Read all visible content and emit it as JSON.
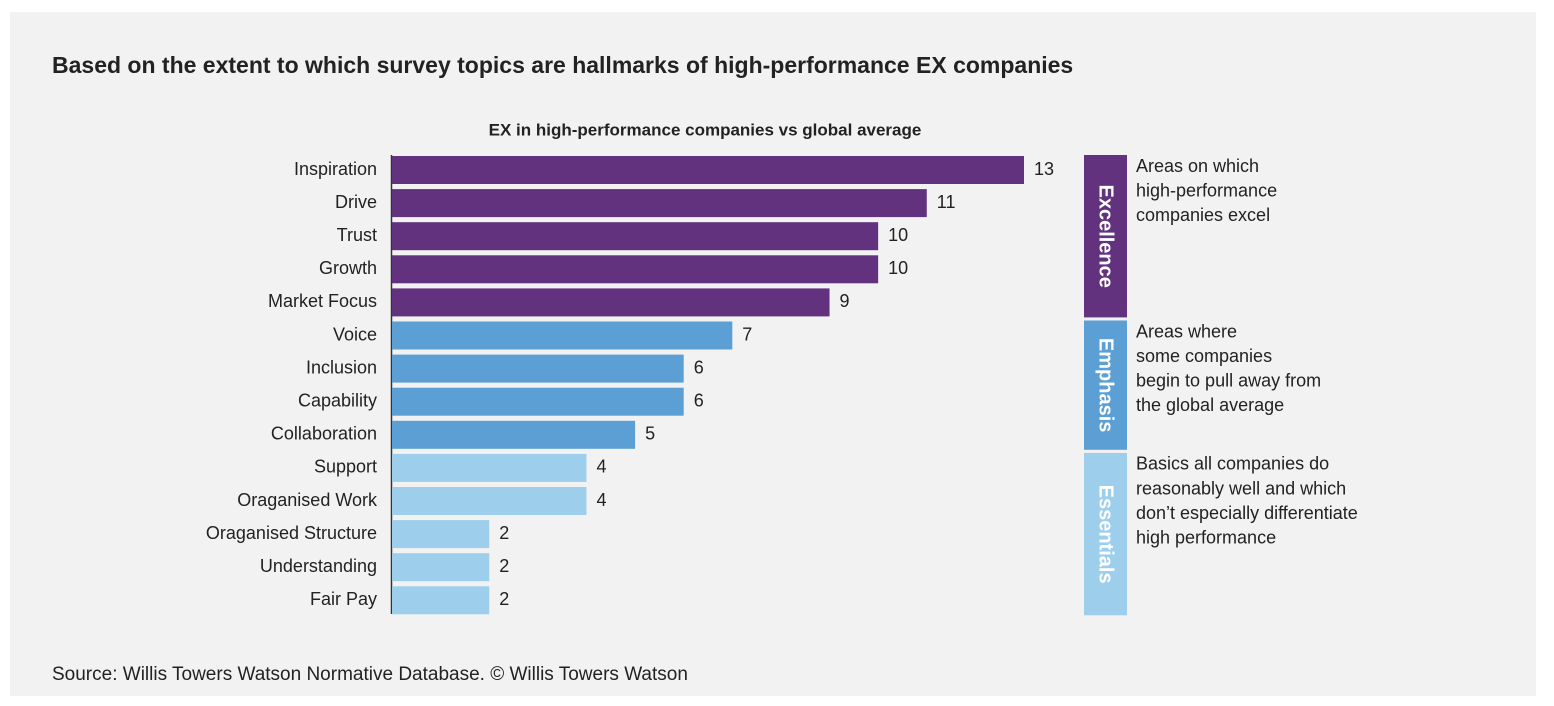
{
  "chart_data": {
    "type": "bar",
    "orientation": "horizontal",
    "title": "Based on the extent to which survey topics are hallmarks of high-performance EX companies",
    "subtitle": "EX in high-performance companies vs global average",
    "categories": [
      "Inspiration",
      "Drive",
      "Trust",
      "Growth",
      "Market Focus",
      "Voice",
      "Inclusion",
      "Capability",
      "Collaboration",
      "Support",
      "Oraganised Work",
      "Oraganised Structure",
      "Understanding",
      "Fair Pay"
    ],
    "series": [
      {
        "name": "Excellence",
        "color": "#62327e",
        "description": [
          "Areas on which",
          "high-performance",
          "companies excel"
        ],
        "values": [
          13,
          11,
          10,
          10,
          9,
          null,
          null,
          null,
          null,
          null,
          null,
          null,
          null,
          null
        ]
      },
      {
        "name": "Emphasis",
        "color": "#5b9fd4",
        "description": [
          "Areas where",
          "some companies",
          "begin to pull away from",
          "the global average"
        ],
        "values": [
          null,
          null,
          null,
          null,
          null,
          7,
          6,
          6,
          5,
          null,
          null,
          null,
          null,
          null
        ]
      },
      {
        "name": "Essentials",
        "color": "#9dcfec",
        "description": [
          "Basics all companies do",
          "reasonably well and which",
          "don’t especially differentiate",
          "high performance"
        ],
        "values": [
          null,
          null,
          null,
          null,
          null,
          null,
          null,
          null,
          null,
          4,
          4,
          2,
          2,
          2
        ]
      }
    ],
    "xlim": [
      0,
      13
    ],
    "source": "Source: Willis Towers Watson Normative Database. © Willis Towers Watson"
  }
}
